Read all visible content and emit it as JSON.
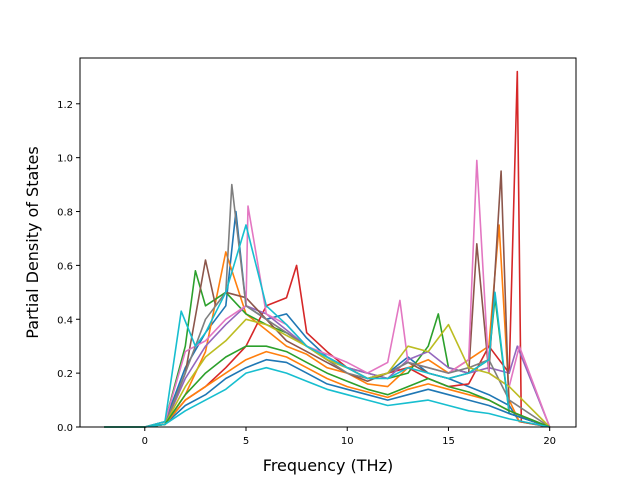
{
  "chart_data": {
    "type": "line",
    "title": "",
    "xlabel": "Frequency (THz)",
    "ylabel": "Partial Density of States",
    "xlim": [
      -3.2,
      21.3
    ],
    "ylim": [
      0.0,
      1.37
    ],
    "x_ticks": [
      0,
      5,
      10,
      15,
      20
    ],
    "x_tick_labels": [
      "0",
      "5",
      "10",
      "15",
      "20"
    ],
    "y_ticks": [
      0.0,
      0.2,
      0.4,
      0.6,
      0.8,
      1.0,
      1.2
    ],
    "y_tick_labels": [
      "0.0",
      "0.2",
      "0.4",
      "0.6",
      "0.8",
      "1.0",
      "1.2"
    ],
    "grid": false,
    "legend": "none",
    "colors": [
      "#1f77b4",
      "#ff7f0e",
      "#2ca02c",
      "#d62728",
      "#9467bd",
      "#8c564b",
      "#e377c2",
      "#7f7f7f",
      "#bcbd22",
      "#17becf"
    ],
    "series": [
      {
        "color": "#1f77b4",
        "x": [
          -2,
          0,
          1,
          2,
          3,
          4,
          4.5,
          5,
          6,
          7,
          8,
          9,
          10,
          11,
          12,
          13,
          14,
          15,
          16,
          17,
          18,
          18.5,
          20
        ],
        "y": [
          0,
          0,
          0.02,
          0.22,
          0.35,
          0.45,
          0.8,
          0.45,
          0.4,
          0.42,
          0.33,
          0.26,
          0.22,
          0.18,
          0.2,
          0.26,
          0.2,
          0.18,
          0.15,
          0.12,
          0.08,
          0.02,
          0
        ]
      },
      {
        "color": "#ff7f0e",
        "x": [
          -2,
          0,
          1,
          2,
          3,
          4,
          5,
          6,
          7,
          8,
          9,
          10,
          11,
          12,
          13,
          14,
          15,
          16,
          17,
          17.5,
          18,
          18.5,
          20
        ],
        "y": [
          0,
          0,
          0.01,
          0.12,
          0.28,
          0.65,
          0.42,
          0.36,
          0.3,
          0.27,
          0.22,
          0.2,
          0.16,
          0.15,
          0.22,
          0.25,
          0.2,
          0.25,
          0.3,
          0.75,
          0.1,
          0.02,
          0
        ]
      },
      {
        "color": "#2ca02c",
        "x": [
          -2,
          0,
          1,
          2,
          2.5,
          3,
          4,
          5,
          6,
          7,
          8,
          9,
          10,
          11,
          12,
          13,
          14,
          14.5,
          15,
          16,
          17,
          17.3,
          18,
          20
        ],
        "y": [
          0,
          0,
          0.02,
          0.3,
          0.58,
          0.45,
          0.5,
          0.42,
          0.38,
          0.35,
          0.3,
          0.25,
          0.22,
          0.2,
          0.18,
          0.2,
          0.3,
          0.42,
          0.22,
          0.2,
          0.25,
          0.48,
          0.05,
          0
        ]
      },
      {
        "color": "#d62728",
        "x": [
          -2,
          0,
          1,
          2,
          3,
          4,
          5,
          6,
          7,
          7.5,
          8,
          9,
          10,
          11,
          12,
          13,
          14,
          15,
          16,
          17,
          18,
          18.4,
          18.6,
          20
        ],
        "y": [
          0,
          0,
          0.01,
          0.1,
          0.15,
          0.22,
          0.3,
          0.45,
          0.48,
          0.6,
          0.35,
          0.28,
          0.22,
          0.18,
          0.2,
          0.22,
          0.18,
          0.15,
          0.16,
          0.3,
          0.2,
          1.32,
          0.02,
          0
        ]
      },
      {
        "color": "#9467bd",
        "x": [
          -2,
          0,
          1,
          2,
          3,
          4,
          5,
          6,
          7,
          8,
          9,
          10,
          11,
          12,
          13,
          14,
          15,
          16,
          17,
          18,
          18.4,
          20
        ],
        "y": [
          0,
          0,
          0.01,
          0.18,
          0.3,
          0.38,
          0.45,
          0.42,
          0.36,
          0.3,
          0.26,
          0.22,
          0.2,
          0.18,
          0.25,
          0.28,
          0.22,
          0.2,
          0.22,
          0.2,
          0.3,
          0
        ]
      },
      {
        "color": "#8c564b",
        "x": [
          -2,
          0,
          1,
          2,
          3,
          3.5,
          4,
          5,
          6,
          7,
          8,
          9,
          10,
          11,
          12,
          13,
          14,
          15,
          16,
          16.4,
          17,
          17.6,
          18,
          20
        ],
        "y": [
          0,
          0,
          0.01,
          0.2,
          0.62,
          0.45,
          0.5,
          0.48,
          0.4,
          0.32,
          0.28,
          0.24,
          0.2,
          0.17,
          0.2,
          0.24,
          0.2,
          0.18,
          0.2,
          0.68,
          0.2,
          0.95,
          0.05,
          0
        ]
      },
      {
        "color": "#e377c2",
        "x": [
          -2,
          0,
          1,
          2,
          3,
          4,
          5,
          5.1,
          6,
          7,
          8,
          9,
          10,
          11,
          12,
          12.6,
          13,
          14,
          15,
          16,
          16.4,
          17,
          18,
          18.5,
          20
        ],
        "y": [
          0,
          0,
          0.02,
          0.28,
          0.32,
          0.4,
          0.45,
          0.82,
          0.42,
          0.38,
          0.3,
          0.27,
          0.24,
          0.2,
          0.24,
          0.47,
          0.24,
          0.22,
          0.2,
          0.25,
          0.99,
          0.2,
          0.15,
          0.3,
          0
        ]
      },
      {
        "color": "#7f7f7f",
        "x": [
          -2,
          0,
          1,
          2,
          3,
          4,
          4.3,
          5,
          6,
          7,
          8,
          9,
          10,
          11,
          12,
          13,
          14,
          15,
          16,
          17,
          18,
          20
        ],
        "y": [
          0,
          0,
          0.01,
          0.2,
          0.4,
          0.5,
          0.9,
          0.45,
          0.4,
          0.35,
          0.3,
          0.25,
          0.2,
          0.18,
          0.2,
          0.24,
          0.22,
          0.2,
          0.22,
          0.25,
          0.1,
          0
        ]
      },
      {
        "color": "#bcbd22",
        "x": [
          -2,
          0,
          1,
          2,
          3,
          4,
          5,
          6,
          7,
          8,
          9,
          10,
          11,
          12,
          13,
          14,
          15,
          16,
          17,
          18,
          20
        ],
        "y": [
          0,
          0,
          0.01,
          0.15,
          0.26,
          0.32,
          0.4,
          0.38,
          0.34,
          0.3,
          0.25,
          0.22,
          0.18,
          0.2,
          0.3,
          0.28,
          0.38,
          0.22,
          0.2,
          0.15,
          0
        ]
      },
      {
        "color": "#17becf",
        "x": [
          -2,
          0,
          1,
          1.8,
          2.5,
          3,
          4,
          5,
          6,
          7,
          8,
          9,
          10,
          11,
          12,
          13,
          14,
          15,
          16,
          17,
          17.3,
          18,
          20
        ],
        "y": [
          0,
          0,
          0.02,
          0.43,
          0.3,
          0.35,
          0.5,
          0.75,
          0.45,
          0.38,
          0.3,
          0.26,
          0.22,
          0.18,
          0.18,
          0.22,
          0.2,
          0.18,
          0.2,
          0.25,
          0.5,
          0.05,
          0
        ]
      },
      {
        "color": "#1f77b4",
        "x": [
          -2,
          0,
          1,
          2,
          3,
          4,
          5,
          6,
          7,
          8,
          9,
          10,
          11,
          12,
          13,
          14,
          15,
          16,
          17,
          18,
          20
        ],
        "y": [
          0,
          0,
          0.01,
          0.08,
          0.12,
          0.18,
          0.22,
          0.25,
          0.24,
          0.2,
          0.16,
          0.14,
          0.12,
          0.1,
          0.12,
          0.14,
          0.12,
          0.1,
          0.08,
          0.05,
          0
        ]
      },
      {
        "color": "#ff7f0e",
        "x": [
          -2,
          0,
          1,
          2,
          3,
          4,
          5,
          6,
          7,
          8,
          9,
          10,
          11,
          12,
          13,
          14,
          15,
          16,
          17,
          18,
          20
        ],
        "y": [
          0,
          0,
          0.01,
          0.1,
          0.15,
          0.2,
          0.25,
          0.28,
          0.26,
          0.22,
          0.18,
          0.15,
          0.13,
          0.11,
          0.14,
          0.16,
          0.14,
          0.12,
          0.1,
          0.06,
          0
        ]
      },
      {
        "color": "#2ca02c",
        "x": [
          -2,
          0,
          1,
          2,
          3,
          4,
          5,
          6,
          7,
          8,
          9,
          10,
          11,
          12,
          13,
          14,
          15,
          16,
          17,
          18,
          20
        ],
        "y": [
          0,
          0,
          0.01,
          0.12,
          0.2,
          0.26,
          0.3,
          0.3,
          0.28,
          0.24,
          0.2,
          0.17,
          0.14,
          0.12,
          0.15,
          0.18,
          0.15,
          0.13,
          0.1,
          0.06,
          0
        ]
      },
      {
        "color": "#17becf",
        "x": [
          -2,
          0,
          1,
          2,
          3,
          4,
          5,
          6,
          7,
          8,
          9,
          10,
          11,
          12,
          13,
          14,
          15,
          16,
          17,
          18,
          20
        ],
        "y": [
          0,
          0,
          0.01,
          0.06,
          0.1,
          0.14,
          0.2,
          0.22,
          0.2,
          0.17,
          0.14,
          0.12,
          0.1,
          0.08,
          0.09,
          0.1,
          0.08,
          0.06,
          0.05,
          0.03,
          0
        ]
      }
    ]
  }
}
